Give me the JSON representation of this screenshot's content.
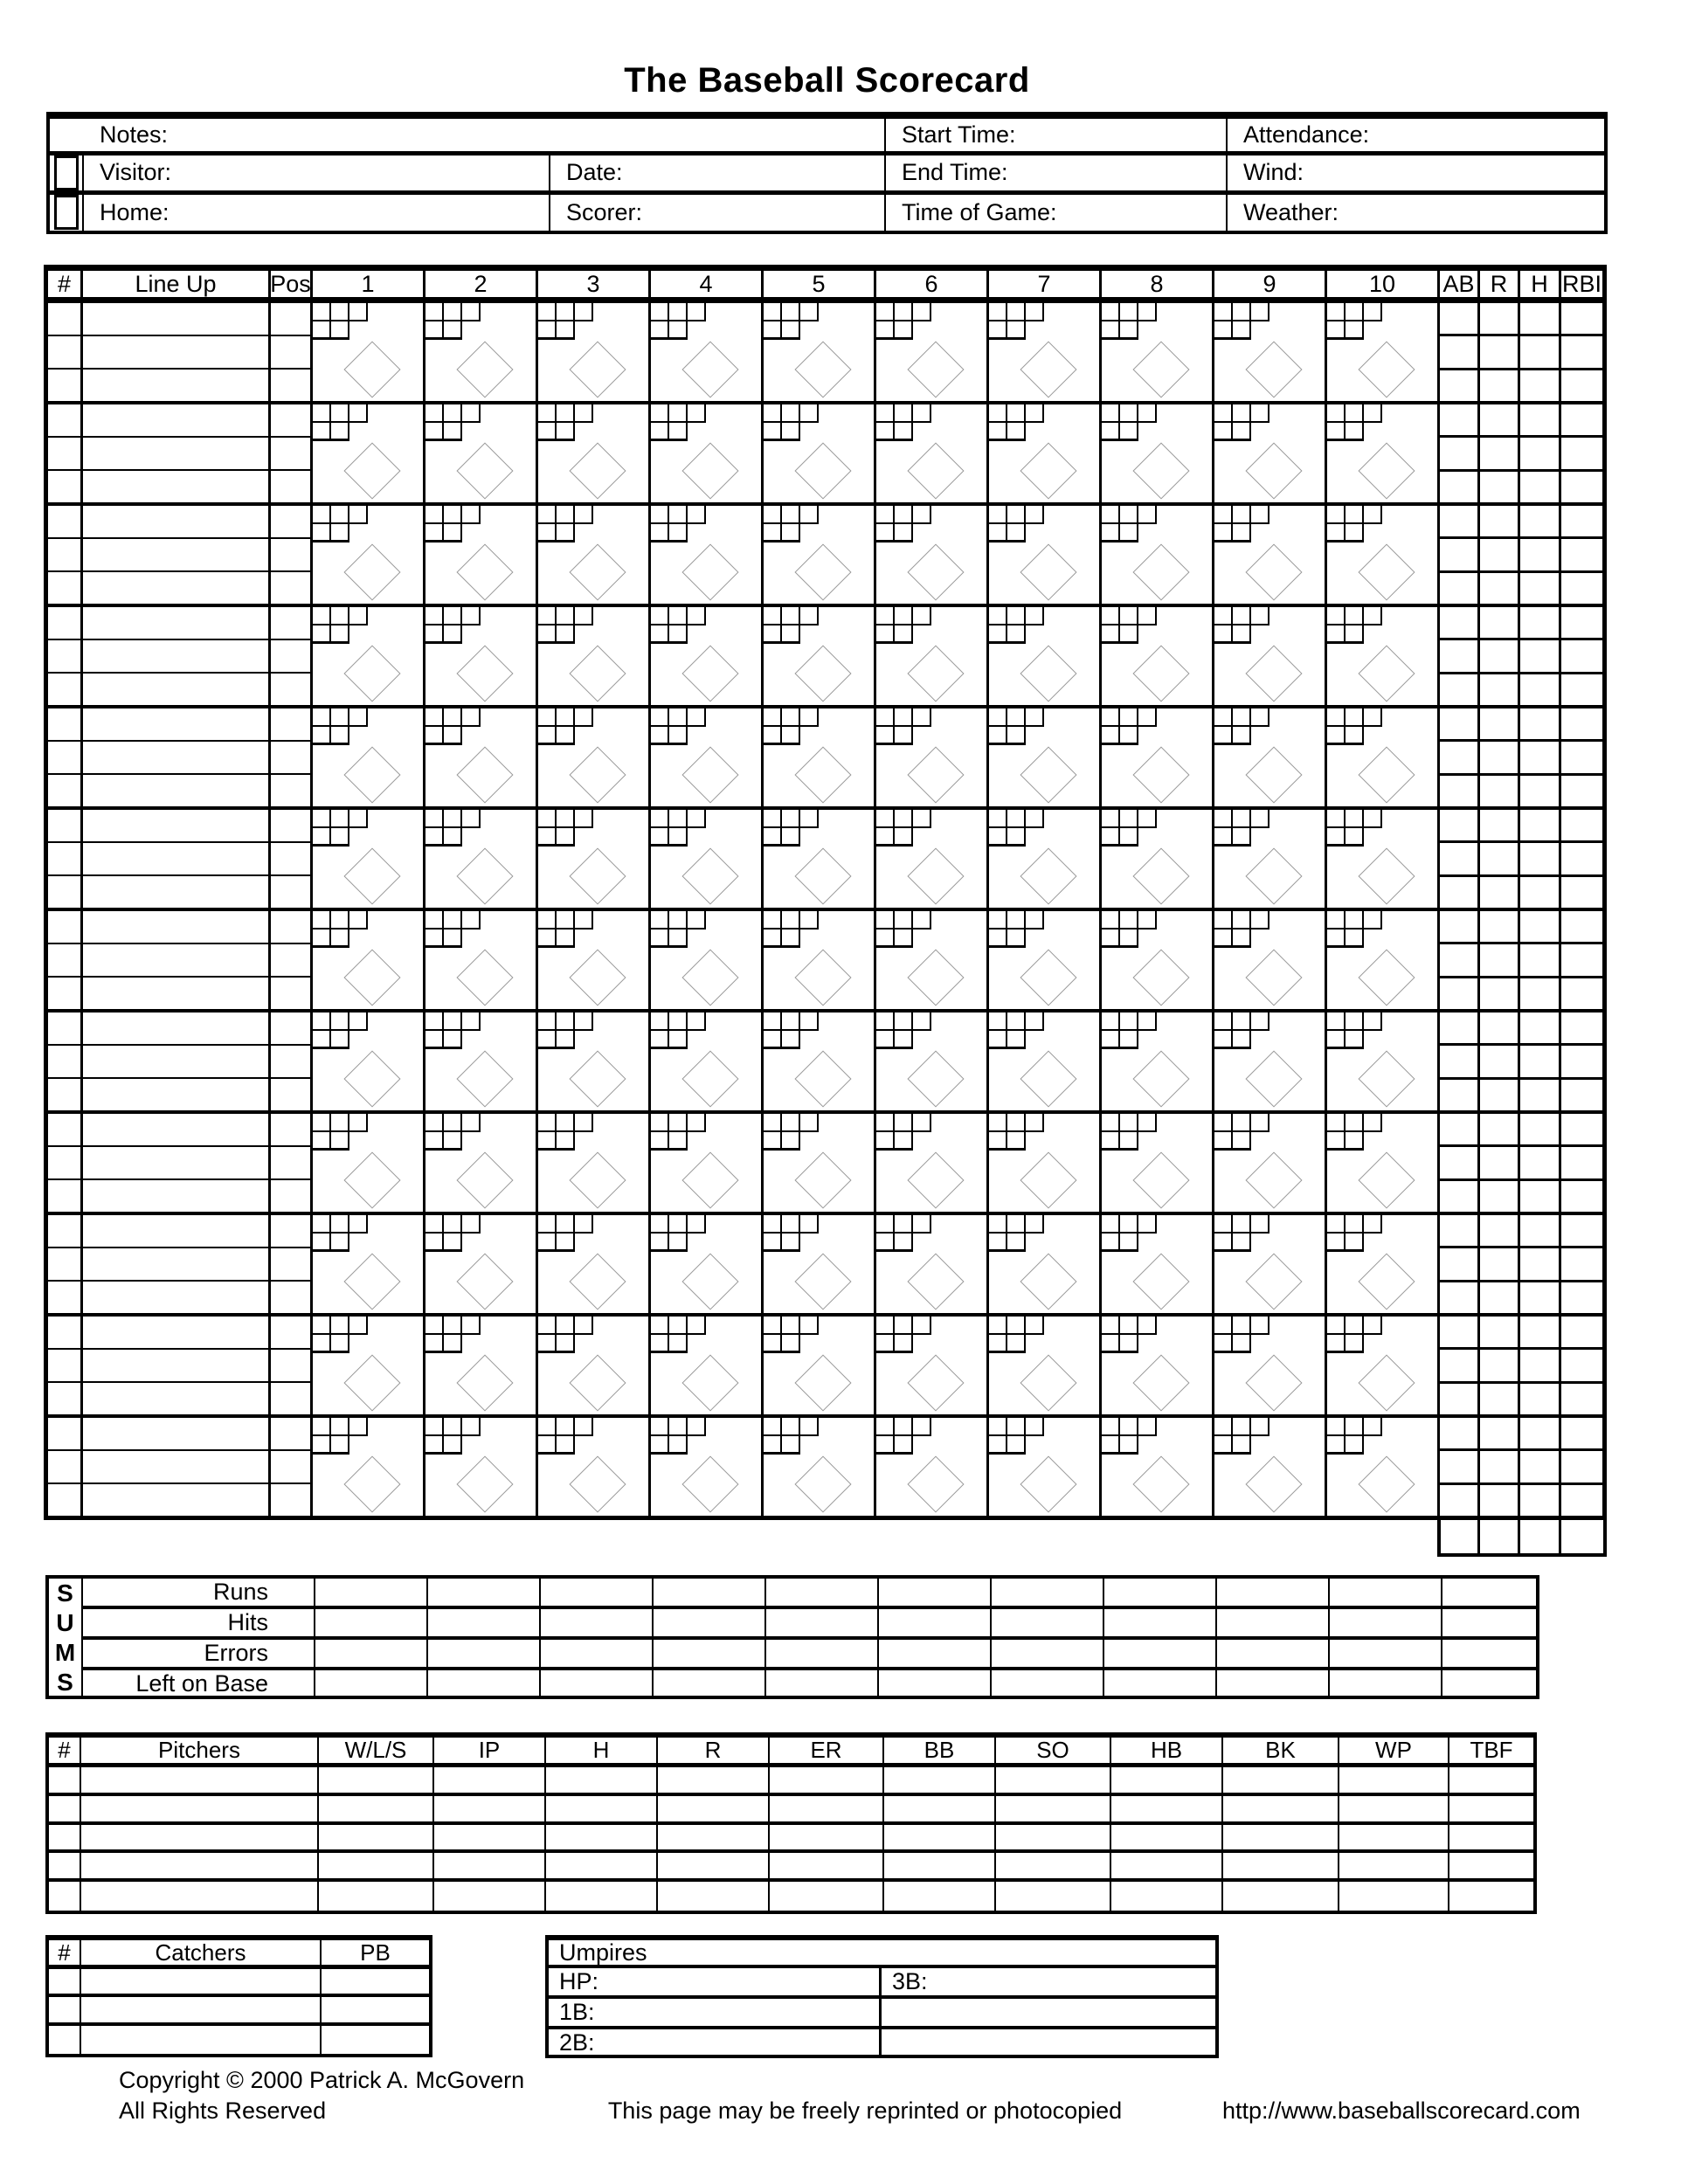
{
  "title": "The Baseball Scorecard",
  "colors": {
    "ink": "#000000",
    "diamond_stroke": "#999999",
    "paper": "#ffffff"
  },
  "info": {
    "notes": "Notes:",
    "visitor": "Visitor:",
    "home": "Home:",
    "date": "Date:",
    "scorer": "Scorer:",
    "start_time": "Start Time:",
    "end_time": "End Time:",
    "time_of_game": "Time of Game:",
    "attendance": "Attendance:",
    "wind": "Wind:",
    "weather": "Weather:"
  },
  "grid": {
    "number_header": "#",
    "lineup_header": "Line Up",
    "pos_header": "Pos",
    "innings": [
      "1",
      "2",
      "3",
      "4",
      "5",
      "6",
      "7",
      "8",
      "9",
      "10"
    ],
    "stat_headers": [
      "AB",
      "R",
      "H",
      "RBI"
    ],
    "player_blocks": 12,
    "rows_per_block": 3,
    "balls_boxes": 3,
    "strikes_boxes": 2
  },
  "sums": {
    "acronym": [
      "S",
      "U",
      "M",
      "S"
    ],
    "row_labels": [
      "Runs",
      "Hits",
      "Errors",
      "Left on Base"
    ],
    "value_columns": 11
  },
  "pitchers": {
    "headers": [
      "#",
      "Pitchers",
      "W/L/S",
      "IP",
      "H",
      "R",
      "ER",
      "BB",
      "SO",
      "HB",
      "BK",
      "WP",
      "TBF"
    ],
    "rows": 5
  },
  "catchers": {
    "headers": [
      "#",
      "Catchers",
      "PB"
    ],
    "rows": 3
  },
  "umpires": {
    "title": "Umpires",
    "hp": "HP:",
    "first": "1B:",
    "second": "2B:",
    "third": "3B:"
  },
  "footer": {
    "copyright": "Copyright © 2000 Patrick A. McGovern",
    "rights": "All Rights Reserved",
    "center": "This page may be freely reprinted or photocopied",
    "url": "http://www.baseballscorecard.com"
  }
}
